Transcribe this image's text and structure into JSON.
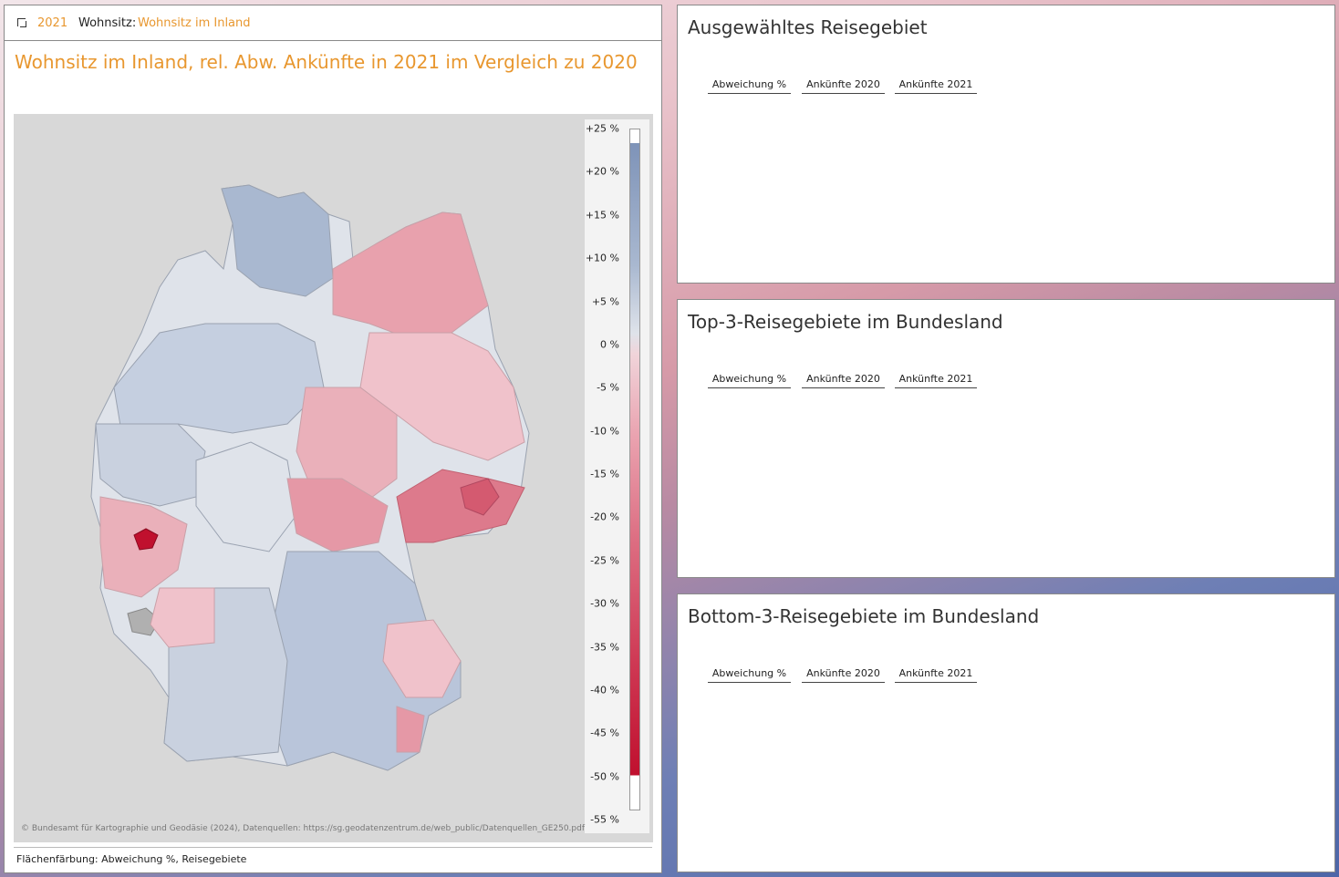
{
  "toolbar": {
    "icon": "expand-icon",
    "year": "2021",
    "residence_label": "Wohnsitz:",
    "residence_value": "Wohnsitz im Inland"
  },
  "map": {
    "title": "Wohnsitz im Inland, rel. Abw. Ankünfte in 2021 im Vergleich zu 2020",
    "copyright": "© Bundesamt für Kartographie und Geodäsie (2024), Datenquellen: https://sg.geodatenzentrum.de/web_public/Datenquellen_GE250.pdf",
    "footer": "Flächenfärbung: Abweichung %, Reisegebiete",
    "legend_ticks": [
      "+25 %",
      "+20 %",
      "+15 %",
      "+10 %",
      "+5 %",
      "0 %",
      "-5 %",
      "-10 %",
      "-15 %",
      "-20 %",
      "-25 %",
      "-30 %",
      "-35 %",
      "-40 %",
      "-45 %",
      "-50 %",
      "-55 %"
    ],
    "colors": {
      "positive_strong": "#7e93b8",
      "positive": "#a9b8d0",
      "neutral": "#dfe3ea",
      "negative_light": "#f0c2cb",
      "negative": "#e48f9e",
      "negative_strong": "#c0102e",
      "no_data": "#b0b0b0",
      "title_accent": "#e8972f"
    }
  },
  "panels": [
    {
      "title": "Ausgewähltes Reisegebiet",
      "columns": [
        "Abweichung %",
        "Ankünfte 2020",
        "Ankünfte 2021"
      ]
    },
    {
      "title": "Top-3-Reisegebiete im Bundesland",
      "columns": [
        "Abweichung %",
        "Ankünfte 2020",
        "Ankünfte 2021"
      ]
    },
    {
      "title": "Bottom-3-Reisegebiete im Bundesland",
      "columns": [
        "Abweichung %",
        "Ankünfte 2020",
        "Ankünfte 2021"
      ]
    }
  ]
}
